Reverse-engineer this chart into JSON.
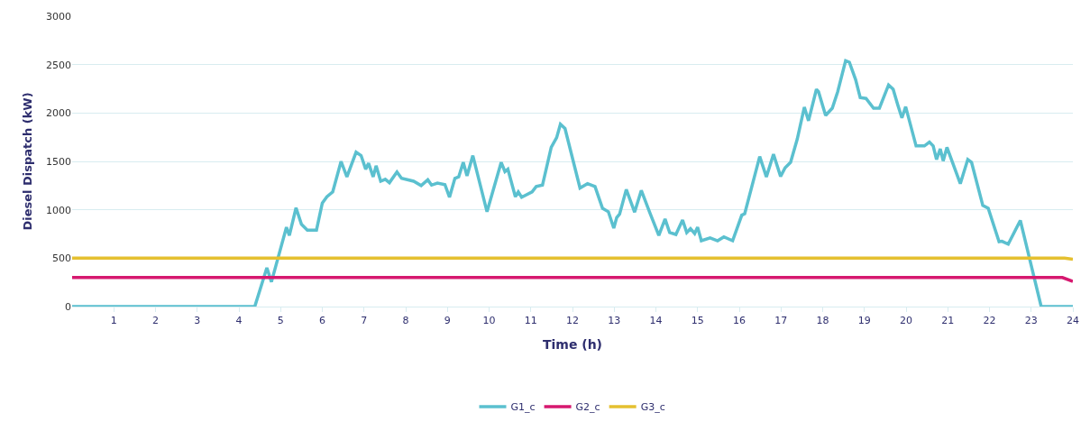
{
  "chart_data": {
    "type": "line",
    "xlabel": "Time (h)",
    "ylabel": "Diesel Dispatch (kW)",
    "xlim": [
      0,
      24
    ],
    "xticks": [
      1,
      2,
      3,
      4,
      5,
      6,
      7,
      8,
      9,
      10,
      11,
      12,
      13,
      14,
      15,
      16,
      17,
      18,
      19,
      20,
      21,
      22,
      23,
      24
    ],
    "ylim": [
      0,
      3000
    ],
    "yticks": [
      0,
      500,
      1000,
      1500,
      2000,
      2500,
      3000
    ],
    "grid": "y",
    "legend": "bottom",
    "marker": "none",
    "line_style": "solid",
    "series": [
      {
        "name": "G1_c",
        "color": "#5bc0cf",
        "x": [
          0,
          4.38,
          4.67,
          4.78,
          5.14,
          5.21,
          5.37,
          5.5,
          5.64,
          5.86,
          6.0,
          6.11,
          6.25,
          6.45,
          6.59,
          6.81,
          6.93,
          7.04,
          7.11,
          7.22,
          7.29,
          7.4,
          7.51,
          7.61,
          7.79,
          7.9,
          8.19,
          8.37,
          8.53,
          8.62,
          8.76,
          8.94,
          9.05,
          9.18,
          9.27,
          9.38,
          9.47,
          9.61,
          9.95,
          10.29,
          10.38,
          10.45,
          10.63,
          10.7,
          10.78,
          11.03,
          11.13,
          11.28,
          11.49,
          11.62,
          11.71,
          11.82,
          12.18,
          12.36,
          12.54,
          12.72,
          12.86,
          12.99,
          13.06,
          13.13,
          13.29,
          13.49,
          13.65,
          13.85,
          14.07,
          14.22,
          14.33,
          14.48,
          14.64,
          14.74,
          14.83,
          14.93,
          15.0,
          15.09,
          15.3,
          15.48,
          15.63,
          15.84,
          16.06,
          16.13,
          16.49,
          16.65,
          16.82,
          16.99,
          17.1,
          17.23,
          17.39,
          17.56,
          17.66,
          17.85,
          17.9,
          18.07,
          18.23,
          18.36,
          18.55,
          18.64,
          18.79,
          18.9,
          19.04,
          19.22,
          19.36,
          19.58,
          19.69,
          19.8,
          19.9,
          19.99,
          20.24,
          20.44,
          20.56,
          20.65,
          20.73,
          20.82,
          20.89,
          20.98,
          21.3,
          21.48,
          21.57,
          21.84,
          21.97,
          22.23,
          22.3,
          22.45,
          22.74,
          23.24,
          24
        ],
        "values": [
          0,
          0,
          400,
          255,
          820,
          735,
          1020,
          850,
          790,
          790,
          1070,
          1135,
          1185,
          1500,
          1340,
          1595,
          1560,
          1420,
          1480,
          1340,
          1455,
          1295,
          1315,
          1280,
          1390,
          1325,
          1295,
          1250,
          1310,
          1255,
          1275,
          1260,
          1130,
          1325,
          1340,
          1490,
          1350,
          1560,
          980,
          1490,
          1395,
          1420,
          1135,
          1185,
          1130,
          1185,
          1240,
          1255,
          1645,
          1745,
          1885,
          1840,
          1225,
          1270,
          1240,
          1015,
          980,
          810,
          920,
          955,
          1210,
          975,
          1200,
          975,
          735,
          905,
          765,
          745,
          895,
          765,
          805,
          755,
          820,
          680,
          710,
          680,
          720,
          680,
          945,
          960,
          1550,
          1340,
          1575,
          1345,
          1435,
          1490,
          1730,
          2060,
          1920,
          2245,
          2220,
          1975,
          2050,
          2220,
          2540,
          2525,
          2345,
          2160,
          2150,
          2050,
          2050,
          2290,
          2245,
          2085,
          1950,
          2065,
          1660,
          1660,
          1700,
          1660,
          1520,
          1630,
          1505,
          1645,
          1270,
          1520,
          1490,
          1045,
          1015,
          670,
          675,
          645,
          890,
          0,
          0
        ]
      },
      {
        "name": "G2_c",
        "color": "#d6186f",
        "x": [
          0,
          23.75,
          24
        ],
        "values": [
          300,
          300,
          260
        ]
      },
      {
        "name": "G3_c",
        "color": "#e5c030",
        "x": [
          0,
          23.8,
          24
        ],
        "values": [
          500,
          500,
          490
        ]
      }
    ]
  }
}
